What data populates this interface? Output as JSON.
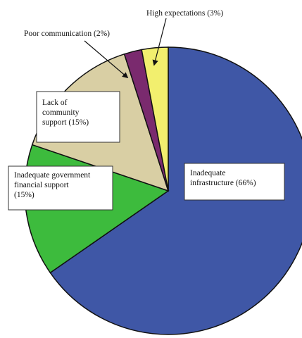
{
  "chart_data": {
    "type": "pie",
    "title": "",
    "start": "12 o'clock",
    "direction": "clockwise",
    "slices": [
      {
        "label": [
          "Inadequate",
          "infrastructure (66%)"
        ],
        "value": 66,
        "color": "#3f57a6"
      },
      {
        "label": [
          "Inadequate government",
          "financial support",
          "(15%)"
        ],
        "value": 15,
        "color": "#3dbb3d"
      },
      {
        "label": [
          "Lack of",
          "community",
          "support (15%)"
        ],
        "value": 15,
        "color": "#d9cfa4"
      },
      {
        "label": [
          "Poor communication (2%)"
        ],
        "value": 2,
        "color": "#7a2a6e"
      },
      {
        "label": [
          "High expectations (3%)"
        ],
        "value": 3,
        "color": "#f2ef6e"
      }
    ]
  }
}
